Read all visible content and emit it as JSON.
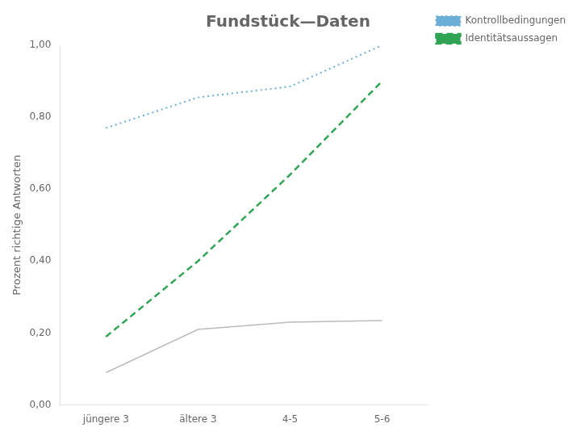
{
  "chart_data": {
    "type": "line",
    "title": "Fundstück—Daten",
    "y_label": "Prozent richtige Antworten",
    "categories": [
      "jüngere 3",
      "ältere 3",
      "4-5",
      "5-6"
    ],
    "series": [
      {
        "color": "#bbbbbb",
        "line_style": "solid",
        "values": [
          0.09,
          0.21,
          0.23,
          0.235
        ]
      },
      {
        "name": "Kontrollbedingungen",
        "color": "#6baed6",
        "line_style": "dotted",
        "values": [
          0.77,
          0.855,
          0.885,
          1.0
        ]
      },
      {
        "name": "Identitätsaussagen",
        "color": "#31a354",
        "line_style": "dashed",
        "values": [
          0.19,
          0.4,
          0.64,
          0.9
        ]
      }
    ],
    "ylim": [
      0.0,
      1.0
    ],
    "yticks": [
      {
        "value": 0.0,
        "label": "0,00"
      },
      {
        "value": 0.2,
        "label": "0,20"
      },
      {
        "value": 0.4,
        "label": "0,40"
      },
      {
        "value": 0.6,
        "label": "0,60"
      },
      {
        "value": 0.8,
        "label": "0,80"
      },
      {
        "value": 1.0,
        "label": "1,00"
      }
    ],
    "grid": false,
    "legend": "right"
  }
}
